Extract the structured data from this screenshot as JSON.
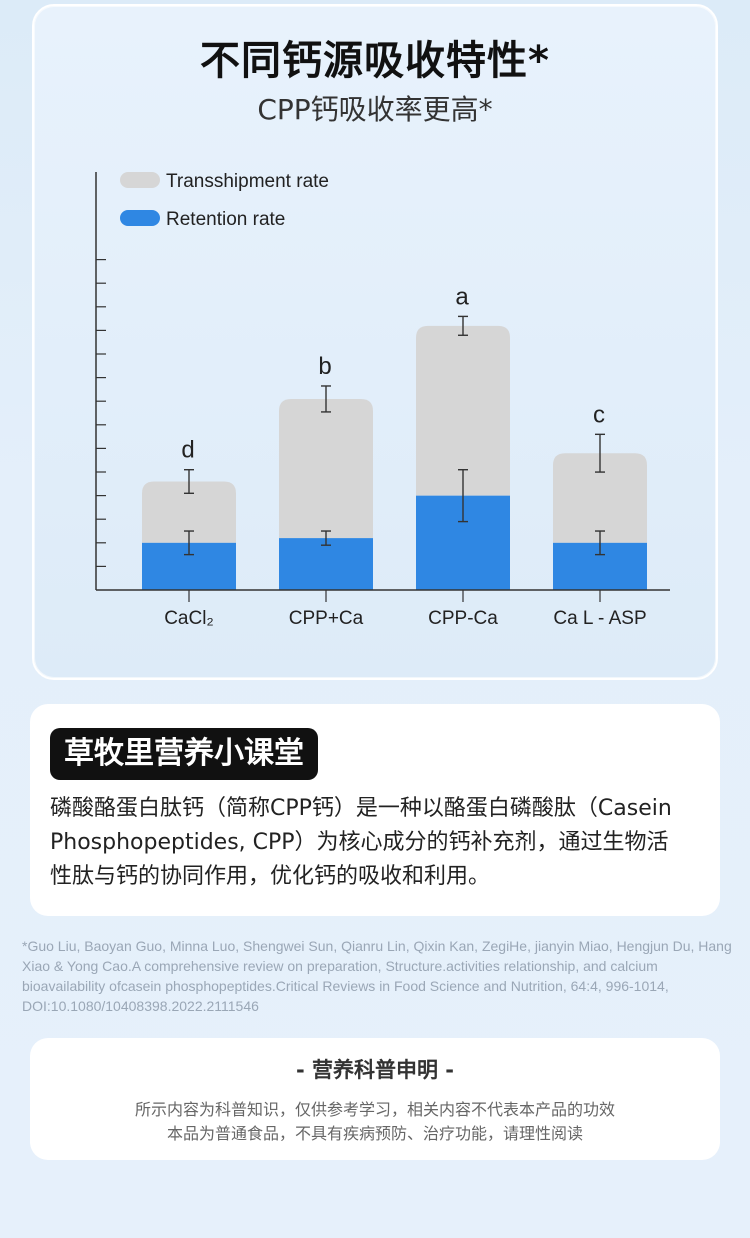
{
  "header": {
    "title": "不同钙源吸收特性*",
    "subtitle": "CPP钙吸收率更高*"
  },
  "chart_data": {
    "type": "bar",
    "stacked": true,
    "categories": [
      "CaCl₂",
      "CPP+Ca",
      "CPP-Ca",
      "Ca L - ASP"
    ],
    "significance_labels": [
      "d",
      "b",
      "a",
      "c"
    ],
    "series": [
      {
        "name": "Retention rate",
        "color": "#2f87e3",
        "values": [
          2,
          2.2,
          4,
          2
        ],
        "error": [
          0.5,
          0.3,
          1.1,
          0.5
        ]
      },
      {
        "name": "Transshipment rate",
        "color": "#d6d6d6",
        "values": [
          2.6,
          5.9,
          7.2,
          3.8
        ],
        "error": [
          0.5,
          0.55,
          0.4,
          0.8
        ]
      }
    ],
    "ylim": [
      0,
      14.5
    ],
    "y_tick_count": 14,
    "y_tick_labels_shown": false,
    "legend_position": "top-left"
  },
  "info": {
    "badge": "草牧里营养小课堂",
    "lines": [
      "磷酸酪蛋白肽钙（简称CPP钙）是一种以酪蛋白磷酸肽（Casein",
      "Phosphopeptides, CPP）为核心成分的钙补充剂，通过生物活",
      "性肽与钙的协同作用，优化钙的吸收和利用。"
    ]
  },
  "citation": {
    "text": "*Guo Liu, Baoyan Guo, Minna Luo, Shengwei Sun, Qianru Lin, Qixin Kan, ZegiHe, jianyin Miao, Hengjun Du, Hang Xiao & Yong Cao.A comprehensive review on preparation, Structure.activities relationship, and calcium bioavailability ofcasein phosphopeptides.Critical Reviews in Food Science and Nutrition, 64:4, 996-1014, DOI:10.1080/10408398.2022.2111546"
  },
  "notice": {
    "title": "- 营养科普申明 -",
    "line1": "所示内容为科普知识，仅供参考学习，相关内容不代表本产品的功效",
    "line2": "本品为普通食品，不具有疾病预防、治疗功能，请理性阅读"
  }
}
